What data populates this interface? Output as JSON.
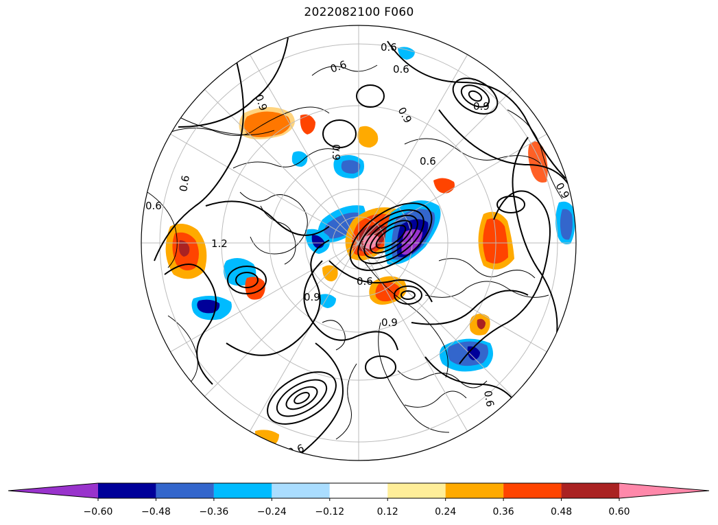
{
  "title": "2022082100 F060",
  "colorbar": {
    "colors": [
      "#9933cc",
      "#000099",
      "#3366cc",
      "#00bbff",
      "#aaddff",
      "#ffffff",
      "#ffee99",
      "#ffaa00",
      "#ff4400",
      "#aa2222",
      "#ff88aa"
    ],
    "tick_labels": [
      "−0.60",
      "−0.48",
      "−0.36",
      "−0.24",
      "−0.12",
      "0.12",
      "0.24",
      "0.36",
      "0.48",
      "0.60"
    ],
    "extend": "both"
  },
  "contour_labels": [
    "0.6",
    "0.6",
    "0.6",
    "0.9",
    "0.9",
    "0.9",
    "0.9",
    "0.6",
    "0.6",
    "1.2",
    "0.6",
    "0.9",
    "0.9",
    "0.9",
    "0.6",
    "0.6",
    "0.6"
  ],
  "projection": "north-polar-stereographic"
}
